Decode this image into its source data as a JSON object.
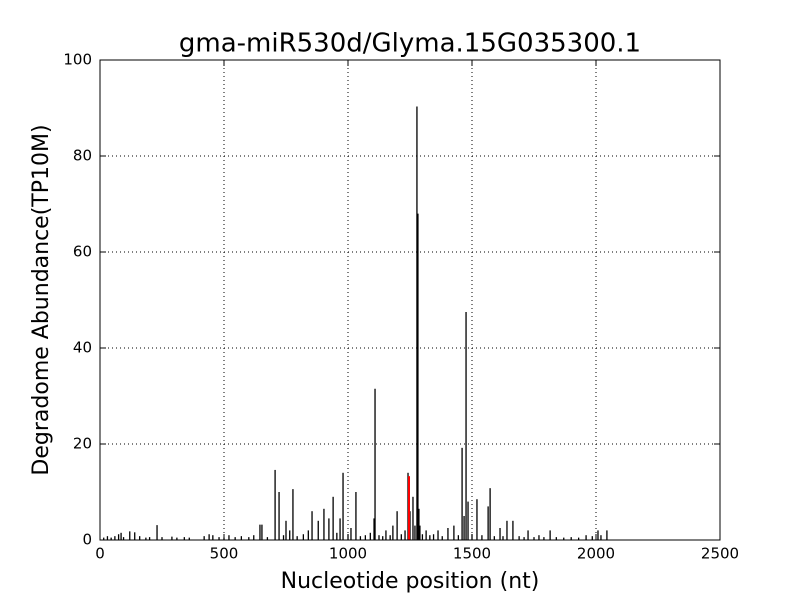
{
  "chart_data": {
    "type": "vlines",
    "title": "gma-miR530d/Glyma.15G035300.1",
    "x_label": "Nucleotide position (nt)",
    "y_label": "Degradome Abundance(TP10M)",
    "xlim": [
      0,
      2500
    ],
    "xticks": [
      0,
      500,
      1000,
      1500,
      2000,
      2500
    ],
    "ylim": [
      0,
      100
    ],
    "yticks": [
      0,
      20,
      40,
      60,
      80,
      100
    ],
    "grid": true,
    "series": [
      {
        "color": "#000000",
        "x": [
          15,
          30,
          45,
          60,
          75,
          85,
          95,
          120,
          140,
          160,
          185,
          200,
          230,
          250,
          290,
          310,
          340,
          360,
          420,
          440,
          455,
          480,
          500,
          520,
          545,
          570,
          600,
          620,
          645,
          653,
          675,
          706,
          722,
          740,
          750,
          765,
          778,
          795,
          820,
          840,
          855,
          880,
          903,
          923,
          940,
          955,
          968,
          980,
          1000,
          1012,
          1032,
          1050,
          1070,
          1090,
          1105,
          1109,
          1125,
          1140,
          1153,
          1170,
          1181,
          1198,
          1215,
          1230,
          1242,
          1250,
          1262,
          1270,
          1278,
          1282,
          1286,
          1290,
          1300,
          1315,
          1330,
          1345,
          1363,
          1380,
          1403,
          1427,
          1445,
          1460,
          1468,
          1476,
          1484,
          1500,
          1520,
          1540,
          1565,
          1573,
          1590,
          1613,
          1625,
          1641,
          1665,
          1690,
          1710,
          1726,
          1750,
          1770,
          1790,
          1815,
          1840,
          1870,
          1900,
          1930,
          1960,
          1985,
          2008,
          2020,
          2044
        ],
        "values": [
          0.5,
          0.8,
          0.5,
          0.8,
          1.2,
          1.5,
          0.6,
          1.8,
          1.6,
          0.8,
          0.5,
          0.6,
          3.1,
          0.6,
          0.7,
          0.5,
          0.6,
          0.5,
          0.8,
          1.2,
          1.0,
          0.6,
          0.5,
          1.0,
          0.6,
          0.8,
          0.6,
          1.0,
          3.2,
          3.2,
          0.6,
          14.6,
          10,
          1.0,
          4,
          2,
          10.6,
          0.8,
          1.2,
          2,
          6,
          4,
          6.5,
          4.5,
          9,
          1.5,
          4.5,
          14,
          1.2,
          2.5,
          10,
          0.8,
          1.0,
          1.5,
          4.5,
          31.5,
          1.0,
          0.8,
          2,
          1.0,
          3,
          6,
          1.2,
          2,
          14,
          6,
          9,
          3,
          90.3,
          68,
          6.5,
          3,
          1.2,
          2,
          1.0,
          1.2,
          2,
          0.8,
          2.5,
          3,
          1.0,
          19.2,
          5,
          47.5,
          8,
          1.2,
          8.5,
          1.0,
          7,
          10.8,
          0.8,
          2.5,
          0.8,
          4,
          4,
          0.8,
          0.6,
          2,
          0.6,
          1.0,
          0.6,
          2,
          0.6,
          0.5,
          0.6,
          0.5,
          1.0,
          0.8,
          2,
          1.0,
          2
        ]
      },
      {
        "color": "#ff0000",
        "x": [
          1246
        ],
        "values": [
          13.3
        ]
      }
    ]
  }
}
